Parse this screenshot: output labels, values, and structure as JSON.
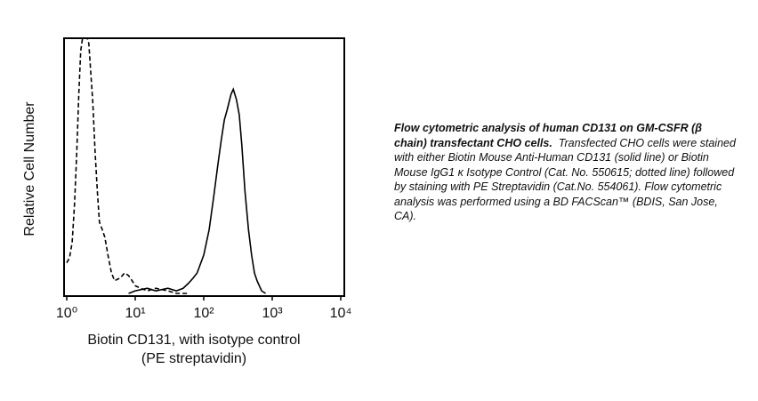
{
  "chart_data": {
    "type": "line",
    "ylabel": "Relative Cell Number",
    "xlabel": [
      "Biotin CD131, with isotype control",
      "(PE streptavidin)"
    ],
    "xscale": "log",
    "xlim": [
      1,
      10000
    ],
    "xticks": [
      {
        "value": 1,
        "label": "10⁰"
      },
      {
        "value": 10,
        "label": "10¹"
      },
      {
        "value": 100,
        "label": "10²"
      },
      {
        "value": 1000,
        "label": "10³"
      },
      {
        "value": 10000,
        "label": "10⁴"
      }
    ],
    "ylim": [
      0,
      100
    ],
    "series": [
      {
        "style": "dashed",
        "color": "#000000",
        "x": [
          1,
          1.1,
          1.2,
          1.3,
          1.4,
          1.5,
          1.6,
          1.7,
          1.8,
          1.9,
          2.0,
          2.1,
          2.2,
          2.4,
          2.6,
          2.8,
          3.0,
          3.3,
          3.6,
          4.0,
          4.5,
          5,
          6,
          7,
          8,
          9,
          10,
          12,
          15,
          20,
          30,
          40,
          60
        ],
        "values": [
          12,
          14,
          20,
          35,
          55,
          78,
          95,
          100,
          100,
          100,
          100,
          98,
          90,
          75,
          55,
          40,
          28,
          25,
          22,
          15,
          8,
          5,
          6,
          8,
          7,
          5,
          3,
          2,
          1,
          2,
          1,
          0,
          0
        ]
      },
      {
        "style": "solid",
        "color": "#000000",
        "x": [
          8,
          10,
          15,
          20,
          30,
          40,
          50,
          60,
          70,
          80,
          100,
          120,
          140,
          160,
          180,
          200,
          220,
          250,
          270,
          300,
          330,
          360,
          400,
          450,
          500,
          550,
          600,
          700,
          800
        ],
        "values": [
          0,
          1,
          2,
          1,
          2,
          1,
          2,
          4,
          6,
          8,
          15,
          25,
          38,
          50,
          60,
          68,
          72,
          78,
          80,
          76,
          70,
          58,
          40,
          25,
          15,
          8,
          5,
          1,
          0
        ]
      }
    ]
  },
  "caption": {
    "bold": "Flow cytometric analysis of human CD131 on GM-CSFR (β chain) transfectant CHO cells.",
    "text": "Transfected CHO cells were stained with either Biotin Mouse Anti-Human CD131 (solid line) or Biotin Mouse IgG1 κ Isotype Control (Cat. No. 550615; dotted line) followed by staining with PE Streptavidin (Cat.No. 554061).  Flow cytometric analysis was performed using a BD FACScan™ (BDIS, San Jose, CA)."
  }
}
